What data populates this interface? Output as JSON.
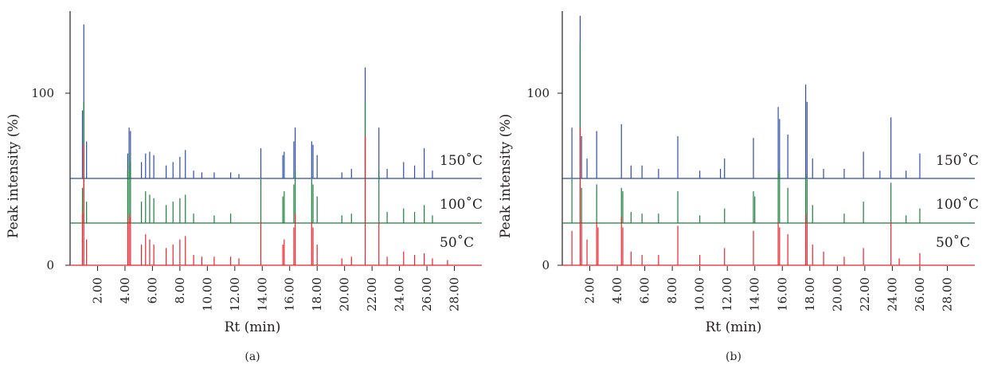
{
  "chart_data": [
    {
      "type": "line",
      "panel_label": "(a)",
      "xlabel": "Rt (min)",
      "ylabel": "Peak intensity (%)",
      "xlim": [
        0,
        30
      ],
      "ylim": [
        0,
        100
      ],
      "yticks": [
        "0",
        "100"
      ],
      "xticks": [
        "2.00",
        "4.00",
        "6.00",
        "8.00",
        "10.00",
        "12.00",
        "14.00",
        "16.00",
        "18.00",
        "20.00",
        "22.00",
        "24.00",
        "26.00",
        "28.00"
      ],
      "xtick_values": [
        2,
        4,
        6,
        8,
        10,
        12,
        14,
        16,
        18,
        20,
        22,
        24,
        26,
        28
      ],
      "series": [
        {
          "name": "150˚C",
          "color": "#2e4ca5",
          "offset": 50,
          "peaks": [
            [
              0.9,
              40
            ],
            [
              1.0,
              90
            ],
            [
              1.2,
              22
            ],
            [
              4.2,
              15
            ],
            [
              4.3,
              30
            ],
            [
              4.4,
              28
            ],
            [
              5.2,
              10
            ],
            [
              5.5,
              15
            ],
            [
              5.8,
              16
            ],
            [
              6.1,
              14
            ],
            [
              7.0,
              8
            ],
            [
              7.5,
              10
            ],
            [
              8.0,
              13
            ],
            [
              8.4,
              17
            ],
            [
              9.0,
              5
            ],
            [
              9.6,
              4
            ],
            [
              10.5,
              4
            ],
            [
              11.7,
              4
            ],
            [
              12.3,
              3
            ],
            [
              13.9,
              18
            ],
            [
              15.5,
              14
            ],
            [
              15.6,
              16
            ],
            [
              16.3,
              22
            ],
            [
              16.4,
              30
            ],
            [
              17.6,
              22
            ],
            [
              17.7,
              20
            ],
            [
              18.0,
              14
            ],
            [
              19.8,
              4
            ],
            [
              20.5,
              6
            ],
            [
              21.5,
              65
            ],
            [
              22.5,
              30
            ],
            [
              23.1,
              6
            ],
            [
              24.3,
              10
            ],
            [
              25.1,
              8
            ],
            [
              25.8,
              18
            ],
            [
              26.4,
              5
            ]
          ]
        },
        {
          "name": "100˚C",
          "color": "#1b7f3b",
          "offset": 25,
          "peaks": [
            [
              0.9,
              20
            ],
            [
              1.0,
              70
            ],
            [
              1.2,
              12
            ],
            [
              4.2,
              30
            ],
            [
              4.3,
              40
            ],
            [
              4.4,
              35
            ],
            [
              5.2,
              12
            ],
            [
              5.5,
              18
            ],
            [
              5.8,
              16
            ],
            [
              6.1,
              14
            ],
            [
              7.0,
              10
            ],
            [
              7.5,
              12
            ],
            [
              8.0,
              14
            ],
            [
              8.4,
              16
            ],
            [
              9.0,
              5
            ],
            [
              10.5,
              4
            ],
            [
              11.7,
              5
            ],
            [
              13.9,
              25
            ],
            [
              15.5,
              15
            ],
            [
              15.6,
              18
            ],
            [
              16.3,
              22
            ],
            [
              16.4,
              30
            ],
            [
              17.6,
              25
            ],
            [
              17.7,
              22
            ],
            [
              18.0,
              15
            ],
            [
              19.8,
              4
            ],
            [
              20.5,
              5
            ],
            [
              21.5,
              70
            ],
            [
              22.5,
              30
            ],
            [
              23.1,
              6
            ],
            [
              24.3,
              8
            ],
            [
              25.1,
              6
            ],
            [
              25.8,
              10
            ],
            [
              26.4,
              4
            ]
          ]
        },
        {
          "name": "50˚C",
          "color": "#e8232a",
          "offset": 0,
          "peaks": [
            [
              0.9,
              30
            ],
            [
              1.0,
              70
            ],
            [
              1.2,
              15
            ],
            [
              4.2,
              25
            ],
            [
              4.3,
              30
            ],
            [
              4.4,
              28
            ],
            [
              5.2,
              12
            ],
            [
              5.5,
              18
            ],
            [
              5.8,
              15
            ],
            [
              6.1,
              12
            ],
            [
              7.0,
              10
            ],
            [
              7.5,
              12
            ],
            [
              8.0,
              15
            ],
            [
              8.4,
              17
            ],
            [
              9.0,
              6
            ],
            [
              9.6,
              5
            ],
            [
              10.5,
              5
            ],
            [
              11.7,
              5
            ],
            [
              12.3,
              4
            ],
            [
              13.9,
              25
            ],
            [
              15.5,
              12
            ],
            [
              15.6,
              15
            ],
            [
              16.3,
              22
            ],
            [
              16.4,
              30
            ],
            [
              17.6,
              25
            ],
            [
              17.7,
              22
            ],
            [
              18.0,
              12
            ],
            [
              19.8,
              4
            ],
            [
              20.5,
              5
            ],
            [
              21.5,
              75
            ],
            [
              22.5,
              25
            ],
            [
              23.1,
              5
            ],
            [
              24.3,
              8
            ],
            [
              25.1,
              6
            ],
            [
              25.8,
              7
            ],
            [
              26.4,
              4
            ],
            [
              27.5,
              3
            ]
          ]
        }
      ]
    },
    {
      "type": "line",
      "panel_label": "(b)",
      "xlabel": "Rt (min)",
      "ylabel": "Peak intensity (%)",
      "xlim": [
        0,
        30
      ],
      "ylim": [
        0,
        100
      ],
      "yticks": [
        "0",
        "100"
      ],
      "xticks": [
        "2.00",
        "4.00",
        "6.00",
        "8.00",
        "10.00",
        "12.00",
        "14.00",
        "16.00",
        "18.00",
        "20.00",
        "22.00",
        "24.00",
        "26.00",
        "28.00"
      ],
      "xtick_values": [
        2,
        4,
        6,
        8,
        10,
        12,
        14,
        16,
        18,
        20,
        22,
        24,
        26,
        28
      ],
      "series": [
        {
          "name": "150˚C",
          "color": "#2e4ca5",
          "offset": 50,
          "peaks": [
            [
              0.7,
              30
            ],
            [
              1.3,
              95
            ],
            [
              1.4,
              25
            ],
            [
              1.8,
              12
            ],
            [
              2.5,
              28
            ],
            [
              4.3,
              32
            ],
            [
              5.0,
              8
            ],
            [
              5.8,
              8
            ],
            [
              7.0,
              6
            ],
            [
              8.4,
              25
            ],
            [
              10.0,
              5
            ],
            [
              11.5,
              6
            ],
            [
              11.8,
              12
            ],
            [
              13.9,
              24
            ],
            [
              15.7,
              42
            ],
            [
              15.8,
              35
            ],
            [
              16.4,
              26
            ],
            [
              17.7,
              55
            ],
            [
              17.8,
              45
            ],
            [
              18.2,
              12
            ],
            [
              19.0,
              6
            ],
            [
              20.5,
              6
            ],
            [
              21.9,
              16
            ],
            [
              23.1,
              5
            ],
            [
              23.9,
              36
            ],
            [
              25.0,
              5
            ],
            [
              26.0,
              15
            ]
          ]
        },
        {
          "name": "100˚C",
          "color": "#1b7f3b",
          "offset": 25,
          "peaks": [
            [
              0.7,
              25
            ],
            [
              1.3,
              105
            ],
            [
              1.4,
              20
            ],
            [
              2.5,
              22
            ],
            [
              4.3,
              20
            ],
            [
              4.4,
              18
            ],
            [
              5.0,
              6
            ],
            [
              5.8,
              5
            ],
            [
              7.0,
              5
            ],
            [
              8.4,
              18
            ],
            [
              10.0,
              4
            ],
            [
              11.8,
              8
            ],
            [
              13.9,
              18
            ],
            [
              14.0,
              15
            ],
            [
              15.7,
              30
            ],
            [
              15.8,
              28
            ],
            [
              16.4,
              20
            ],
            [
              17.7,
              28
            ],
            [
              17.8,
              25
            ],
            [
              18.2,
              10
            ],
            [
              20.5,
              5
            ],
            [
              21.9,
              12
            ],
            [
              23.9,
              23
            ],
            [
              25.0,
              4
            ],
            [
              26.0,
              8
            ]
          ]
        },
        {
          "name": "50˚C",
          "color": "#e8232a",
          "offset": 0,
          "peaks": [
            [
              0.7,
              20
            ],
            [
              1.3,
              80
            ],
            [
              1.4,
              25
            ],
            [
              1.8,
              15
            ],
            [
              2.5,
              25
            ],
            [
              2.6,
              22
            ],
            [
              4.3,
              28
            ],
            [
              4.4,
              22
            ],
            [
              5.0,
              8
            ],
            [
              5.8,
              6
            ],
            [
              7.0,
              6
            ],
            [
              8.4,
              23
            ],
            [
              10.0,
              6
            ],
            [
              11.8,
              10
            ],
            [
              13.9,
              20
            ],
            [
              15.7,
              25
            ],
            [
              15.8,
              22
            ],
            [
              16.4,
              18
            ],
            [
              17.7,
              30
            ],
            [
              17.8,
              25
            ],
            [
              18.2,
              12
            ],
            [
              19.0,
              8
            ],
            [
              20.5,
              5
            ],
            [
              21.9,
              10
            ],
            [
              23.9,
              25
            ],
            [
              24.5,
              4
            ],
            [
              26.0,
              7
            ]
          ]
        }
      ]
    }
  ]
}
